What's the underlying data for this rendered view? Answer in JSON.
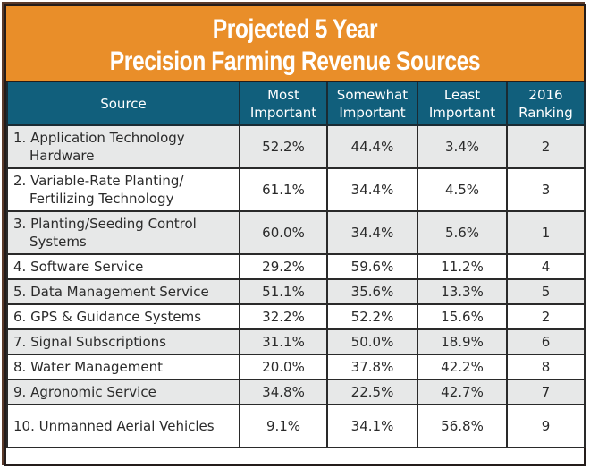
{
  "title": {
    "line1": "Projected 5 Year",
    "line2": "Precision Farming Revenue Sources"
  },
  "colors": {
    "title_bg": "#e98e29",
    "header_bg": "#115f7c",
    "row_alt_bg": "#e7e8e8"
  },
  "headers": {
    "source": "Source",
    "most": [
      "Most",
      "Important"
    ],
    "somewhat": [
      "Somewhat",
      "Important"
    ],
    "least": [
      "Least",
      "Important"
    ],
    "ranking": [
      "2016",
      "Ranking"
    ]
  },
  "rows": [
    {
      "source": "1. Application Technology Hardware",
      "most": "52.2%",
      "somewhat": "44.4%",
      "least": "3.4%",
      "ranking": "2"
    },
    {
      "source": "2. Variable-Rate Planting/ Fertilizing Technology",
      "most": "61.1%",
      "somewhat": "34.4%",
      "least": "4.5%",
      "ranking": "3"
    },
    {
      "source": "3. Planting/Seeding Control Systems",
      "most": "60.0%",
      "somewhat": "34.4%",
      "least": "5.6%",
      "ranking": "1"
    },
    {
      "source": "4. Software Service",
      "most": "29.2%",
      "somewhat": "59.6%",
      "least": "11.2%",
      "ranking": "4"
    },
    {
      "source": "5. Data Management Service",
      "most": "51.1%",
      "somewhat": "35.6%",
      "least": "13.3%",
      "ranking": "5"
    },
    {
      "source": "6. GPS & Guidance Systems",
      "most": "32.2%",
      "somewhat": "52.2%",
      "least": "15.6%",
      "ranking": "2"
    },
    {
      "source": "7. Signal Subscriptions",
      "most": "31.1%",
      "somewhat": "50.0%",
      "least": "18.9%",
      "ranking": "6"
    },
    {
      "source": "8. Water Management",
      "most": "20.0%",
      "somewhat": "37.8%",
      "least": "42.2%",
      "ranking": "8"
    },
    {
      "source": "9. Agronomic Service",
      "most": "34.8%",
      "somewhat": "22.5%",
      "least": "42.7%",
      "ranking": "7"
    },
    {
      "source": "10. Unmanned Aerial Vehicles",
      "most": "9.1%",
      "somewhat": "34.1%",
      "least": "56.8%",
      "ranking": "9"
    }
  ]
}
